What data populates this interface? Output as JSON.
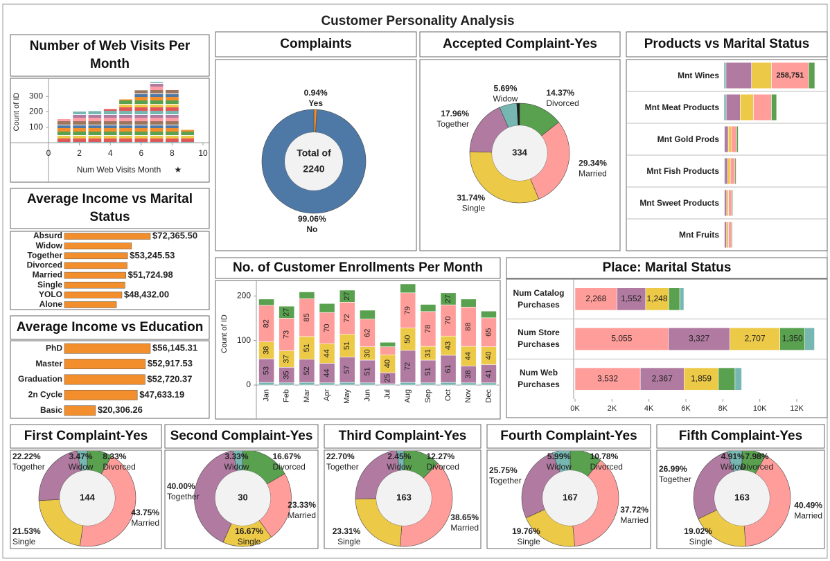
{
  "title": "Customer Personality Analysis",
  "chart_data": [
    {
      "type": "bar",
      "title": "Number of Web Visits Per Month",
      "x_label": "Num Web Visits Month",
      "y_label": "Count of ID",
      "x": [
        1,
        2,
        3,
        4,
        5,
        6,
        7,
        8,
        9
      ],
      "values": [
        153,
        202,
        205,
        218,
        281,
        340,
        393,
        342,
        83
      ],
      "xlim": [
        0,
        10
      ],
      "xticks": [
        0,
        2,
        4,
        6,
        8,
        10
      ],
      "ylim": [
        0,
        400
      ],
      "yticks": [
        100,
        200,
        300
      ]
    },
    {
      "type": "hbar",
      "title": "Average Income vs Marital Status",
      "color": "#f28e2b",
      "categories": [
        "Absurd",
        "Widow",
        "Together",
        "Divorced",
        "Married",
        "Single",
        "YOLO",
        "Alone"
      ],
      "values": [
        72365.5,
        56481.55,
        53245.53,
        52834.23,
        51724.98,
        50995.35,
        48432,
        43789
      ],
      "value_labels": [
        "$72,365.50",
        null,
        "$53,245.53",
        null,
        "$51,724.98",
        null,
        "$48,432.00",
        null
      ]
    },
    {
      "type": "hbar",
      "title": "Average Income vs Education",
      "color": "#f28e2b",
      "categories": [
        "PhD",
        "Master",
        "Graduation",
        "2n Cycle",
        "Basic"
      ],
      "values": [
        56145.31,
        52917.53,
        52720.37,
        47633.19,
        20306.26
      ],
      "value_labels": [
        "$56,145.31",
        "$52,917.53",
        "$52,720.37",
        "$47,633.19",
        "$20,306.26"
      ]
    },
    {
      "type": "pie",
      "title": "Complaints",
      "categories": [
        "Yes",
        "No"
      ],
      "values": [
        0.94,
        99.06
      ],
      "value_labels": [
        "0.94%",
        "99.06%"
      ],
      "colors": [
        "#f28e2b",
        "#4e79a7"
      ],
      "center_label": "Total of",
      "total": 2240
    },
    {
      "type": "pie",
      "title": "Accepted Complaint-Yes",
      "categories": [
        "Divorced",
        "Married",
        "Single",
        "Together",
        "Widow",
        null
      ],
      "values": [
        14.37,
        29.34,
        31.74,
        17.96,
        5.69,
        0.9
      ],
      "value_labels": [
        "14.37%",
        "29.34%",
        "31.74%",
        "17.96%",
        "5.69%",
        null
      ],
      "colors": [
        "#59a14f",
        "#ff9d9a",
        "#edc948",
        "#b07aa1",
        "#76b7b2",
        "#1a1a1a"
      ],
      "total": 334
    },
    {
      "type": "hbar",
      "title": "Products vs Marital Status",
      "categories": [
        "Mnt Wines",
        "Mnt Meat Products",
        "Mnt Gold Prods",
        "Mnt Fish Products",
        "Mnt Sweet Products",
        "Mnt Fruits"
      ],
      "series": [
        {
          "color": "#76b7b2",
          "values": [
            14000,
            15000,
            3500,
            4000,
            3000,
            3000
          ]
        },
        {
          "color": "#b07aa1",
          "values": [
            177000,
            97000,
            26000,
            22000,
            16000,
            15000
          ]
        },
        {
          "color": "#edc948",
          "values": [
            138000,
            92000,
            20000,
            18000,
            13000,
            13000
          ]
        },
        {
          "color": "#ff9d9a",
          "values": [
            258751,
            125000,
            38000,
            32000,
            23000,
            22000
          ],
          "value_labels": [
            "258,751",
            null,
            null,
            null,
            null,
            null
          ]
        },
        {
          "color": "#59a14f",
          "values": [
            42000,
            36000,
            11000,
            8000,
            6000,
            6000
          ]
        }
      ]
    },
    {
      "type": "bar",
      "title": "No. of Customer Enrollments Per Month",
      "y_label": "Count of ID",
      "categories": [
        "Jan",
        "Feb",
        "Mar",
        "Apr",
        "May",
        "Jun",
        "Jul",
        "Aug",
        "Sep",
        "Oct",
        "Nov",
        "Dec"
      ],
      "ylim": [
        0,
        230
      ],
      "yticks": [
        0,
        100,
        200
      ],
      "series": [
        {
          "color": "#76b7b2",
          "values": [
            6,
            5,
            6,
            5,
            6,
            5,
            3,
            6,
            5,
            6,
            5,
            5
          ],
          "value_labels": [
            null,
            null,
            null,
            null,
            null,
            null,
            null,
            null,
            null,
            null,
            null,
            null
          ]
        },
        {
          "color": "#b07aa1",
          "values": [
            53,
            35,
            52,
            44,
            57,
            51,
            25,
            72,
            51,
            61,
            38,
            41
          ]
        },
        {
          "color": "#edc948",
          "values": [
            38,
            37,
            51,
            44,
            51,
            30,
            40,
            50,
            31,
            43,
            44,
            40
          ]
        },
        {
          "color": "#ff9d9a",
          "values": [
            82,
            73,
            85,
            70,
            72,
            62,
            18,
            79,
            78,
            70,
            88,
            65
          ],
          "value_labels": [
            "82",
            "73",
            "85",
            "70",
            "72",
            "62",
            null,
            "79",
            "78",
            "70",
            "88",
            "65"
          ]
        },
        {
          "color": "#59a14f",
          "values": [
            14,
            27,
            15,
            20,
            27,
            20,
            10,
            20,
            16,
            27,
            18,
            15
          ],
          "value_labels": [
            null,
            "27",
            null,
            null,
            "27",
            null,
            null,
            null,
            null,
            "27",
            null,
            null
          ]
        }
      ]
    },
    {
      "type": "hbar",
      "title": "Place: Marital Status",
      "categories": [
        "Num Catalog Purchases",
        "Num Store Purchases",
        "Num Web Purchases"
      ],
      "xlim": [
        0,
        13500
      ],
      "xticks": [
        {
          "value": 0,
          "label": "0K"
        },
        {
          "value": 2000,
          "label": "2K"
        },
        {
          "value": 4000,
          "label": "4K"
        },
        {
          "value": 6000,
          "label": "6K"
        },
        {
          "value": 8000,
          "label": "8K"
        },
        {
          "value": 10000,
          "label": "10K"
        },
        {
          "value": 12000,
          "label": "12K"
        }
      ],
      "series": [
        {
          "color": "#ff9d9a",
          "values": [
            2268,
            5055,
            3532
          ],
          "value_labels": [
            "2,268",
            "5,055",
            "3,532"
          ]
        },
        {
          "color": "#b07aa1",
          "values": [
            1552,
            3327,
            2367
          ],
          "value_labels": [
            "1,552",
            "3,327",
            "2,367"
          ]
        },
        {
          "color": "#edc948",
          "values": [
            1248,
            2707,
            1859
          ],
          "value_labels": [
            "1,248",
            "2,707",
            "1,859"
          ]
        },
        {
          "color": "#59a14f",
          "values": [
            600,
            1350,
            900
          ],
          "value_labels": [
            null,
            "1,350",
            null
          ]
        },
        {
          "color": "#76b7b2",
          "values": [
            220,
            520,
            360
          ],
          "value_labels": [
            null,
            null,
            null
          ]
        }
      ]
    },
    {
      "type": "pie",
      "title": "First Complaint-Yes",
      "categories": [
        "Divorced",
        "Married",
        "Single",
        "Together",
        "Widow"
      ],
      "values": [
        8.33,
        43.75,
        21.53,
        22.22,
        3.47
      ],
      "value_labels": [
        "8.33%",
        "43.75%",
        "21.53%",
        "22.22%",
        "3.47%"
      ],
      "colors": [
        "#59a14f",
        "#ff9d9a",
        "#edc948",
        "#b07aa1",
        "#76b7b2"
      ],
      "total": 144
    },
    {
      "type": "pie",
      "title": "Second Complaint-Yes",
      "categories": [
        "Divorced",
        "Married",
        "Single",
        "Together",
        "Widow"
      ],
      "values": [
        16.67,
        23.33,
        16.67,
        40.0,
        3.33
      ],
      "value_labels": [
        "16.67%",
        "23.33%",
        "16.67%",
        "40.00%",
        "3.33%"
      ],
      "colors": [
        "#59a14f",
        "#ff9d9a",
        "#edc948",
        "#b07aa1",
        "#76b7b2"
      ],
      "total": 30
    },
    {
      "type": "pie",
      "title": "Third Complaint-Yes",
      "categories": [
        "Divorced",
        "Married",
        "Single",
        "Together",
        "Widow"
      ],
      "values": [
        12.27,
        38.65,
        23.31,
        22.7,
        2.45
      ],
      "value_labels": [
        "12.27%",
        "38.65%",
        "23.31%",
        "22.70%",
        "2.45%"
      ],
      "colors": [
        "#59a14f",
        "#ff9d9a",
        "#edc948",
        "#b07aa1",
        "#76b7b2"
      ],
      "total": 163
    },
    {
      "type": "pie",
      "title": "Fourth Complaint-Yes",
      "categories": [
        "Divorced",
        "Married",
        "Single",
        "Together",
        "Widow"
      ],
      "values": [
        10.78,
        37.72,
        19.76,
        25.75,
        5.99
      ],
      "value_labels": [
        "10.78%",
        "37.72%",
        "19.76%",
        "25.75%",
        "5.99%"
      ],
      "colors": [
        "#59a14f",
        "#ff9d9a",
        "#edc948",
        "#b07aa1",
        "#76b7b2"
      ],
      "total": 167
    },
    {
      "type": "pie",
      "title": "Fifth Complaint-Yes",
      "categories": [
        "Divorced",
        "Married",
        "Single",
        "Together",
        "Widow"
      ],
      "values": [
        7.98,
        40.49,
        19.02,
        26.99,
        4.91
      ],
      "value_labels": [
        "7.98%",
        "40.49%",
        "19.02%",
        "26.99%",
        "4.91%"
      ],
      "colors": [
        "#59a14f",
        "#ff9d9a",
        "#edc948",
        "#b07aa1",
        "#76b7b2"
      ],
      "total": 163
    }
  ]
}
